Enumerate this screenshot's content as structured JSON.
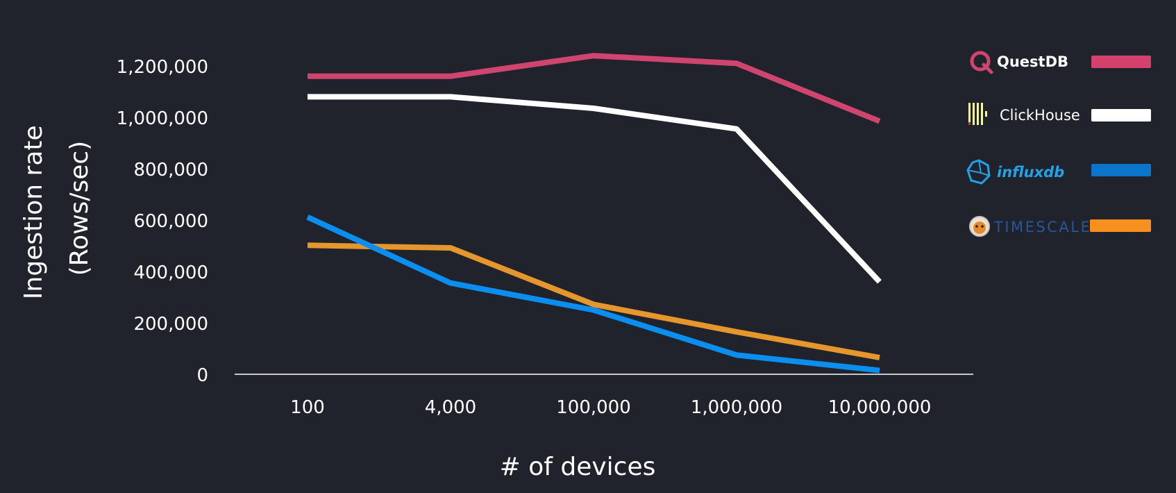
{
  "chart_data": {
    "type": "line",
    "title": "",
    "xlabel": "# of devices",
    "ylabel": "Ingestion rate (Rows/sec)",
    "ylabel_lines": [
      "Ingestion rate",
      "(Rows/sec)"
    ],
    "ylim": [
      0,
      1200000
    ],
    "yticks": [
      0,
      200000,
      400000,
      600000,
      800000,
      1000000,
      1200000
    ],
    "ytick_labels": [
      "0",
      "200,000",
      "400,000",
      "600,000",
      "800,000",
      "1,000,000",
      "1,200,000"
    ],
    "categories": [
      "100",
      "4,000",
      "100,000",
      "1,000,000",
      "10,000,000"
    ],
    "grid": false,
    "legend_position": "right",
    "series": [
      {
        "name": "QuestDB",
        "color": "#d0456f",
        "legend_color": "#d3416c",
        "icon": "questdb-logo-icon",
        "name_color": "#ffffff",
        "values": [
          1160000,
          1160000,
          1240000,
          1210000,
          985000
        ]
      },
      {
        "name": "ClickHouse",
        "color": "#ffffff",
        "legend_color": "#ffffff",
        "icon": "clickhouse-logo-icon",
        "name_color": "#ffffff",
        "values": [
          1080000,
          1080000,
          1035000,
          955000,
          360000
        ]
      },
      {
        "name": "influxdb",
        "color": "#0a8ff0",
        "legend_color": "#0b76c9",
        "icon": "influxdb-logo-icon",
        "name_color": "#22a3e8",
        "values": [
          612000,
          355000,
          250000,
          75000,
          15000
        ]
      },
      {
        "name": "TIMESCALE",
        "color": "#e5962c",
        "legend_color": "#f7901e",
        "icon": "timescale-logo-icon",
        "name_color": "#27579a",
        "values": [
          502000,
          492000,
          272000,
          165000,
          65000
        ]
      }
    ]
  }
}
